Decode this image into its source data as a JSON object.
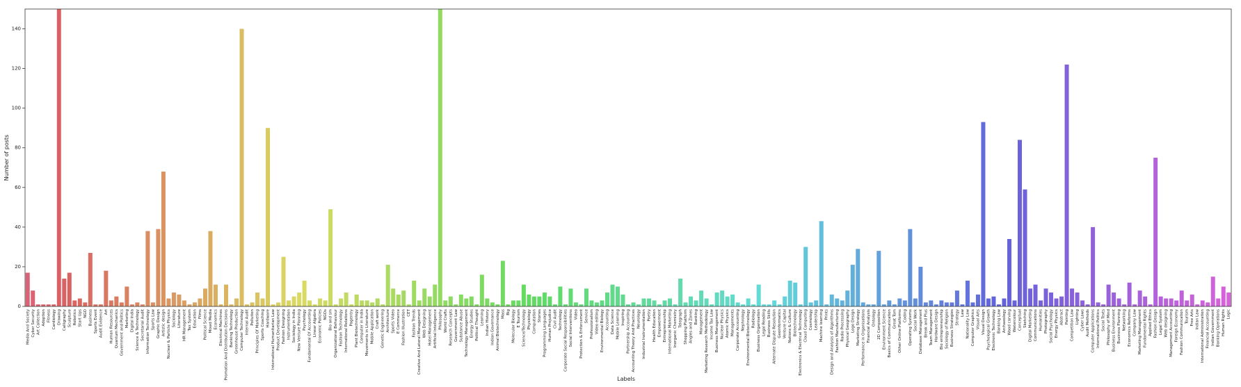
{
  "chart_data": {
    "type": "bar",
    "x_label": "Labels",
    "y_label": "Number of posts",
    "palette": "husl",
    "grid": false,
    "ylim": [
      0,
      150
    ],
    "yticks": [
      0,
      20,
      40,
      60,
      80,
      100,
      120,
      140
    ],
    "categories": [
      "Media And Society",
      "Cyber Security",
      "Art Collection",
      "Adoption",
      "Fitness",
      "Cardiology",
      "Drawing",
      "Calligraphy",
      "Sculpture",
      "Robotics",
      "Start Ups",
      "NGO",
      "Business",
      "Sports Event",
      "Audit Evidence",
      "Art",
      "Human Resources",
      "Quantum Mechanics",
      "Government and Politics",
      "Marketing",
      "Digital India",
      "Science & Technology",
      "Secretarial Audit",
      "Information Technology",
      "Sports Law",
      "Graphic Design",
      "Artistic design",
      "Nuclear & Particle Physics",
      "Sociology",
      "Literature",
      "HR Management",
      "Tax System",
      "Education",
      "Films",
      "Political Science",
      "Mixed Media",
      "Economics",
      "Electrical Machines",
      "Promotion And Distribution Decisions",
      "Banking Technology",
      "Greenhouse Production",
      "Computer Technology",
      "Internal Audit",
      "Pollution",
      "Principles Of Marketing",
      "Sports Coaching",
      "Hardware",
      "International Humanitarian Law",
      "Product Development",
      "Fashion Designing",
      "Instrumentation",
      "Sociology in India",
      "New Venture Planning",
      "Psychology",
      "Fundamental Of Accounting",
      "Linear Algebra",
      "Economic Policies",
      "NGOs",
      "Bio and sm",
      "Organizational Behaviour",
      "Fashion Technology",
      "International Relations",
      "Pagentry",
      "Plant Biotechnology",
      "Computer in India",
      "Movements in Literature",
      "Mobile Application",
      "Craft work",
      "Genetic Engineering",
      "Architecture",
      "Sports Video",
      "E Commerce",
      "Fashion Illustration",
      "CET",
      "Fashion Trends",
      "Creative And Lateral Management",
      "Web Designing",
      "Hotel Management",
      "Artificial Intelligence",
      "Philosophy",
      "World Crafts",
      "Research Concepts",
      "Government Law",
      "Substance Abuse",
      "Technology Management",
      "Energy Studies",
      "Political Thought",
      "Learning",
      "Indian History",
      "Indian Governance",
      "Animal Biotechnology",
      "Mass",
      "Big",
      "Molecular Biology",
      "E Tourism",
      "Science/Technology",
      "Physiology",
      "Computation",
      "Stories",
      "Programming Languages",
      "Human Prejudice",
      "Civil Audit",
      "Technology",
      "Corporate Social Responsibilities",
      "Social Interventions",
      "Video",
      "Protection & Enforcement",
      "Service",
      "Professionalism",
      "Video editing",
      "Environmental Biology",
      "Accounting",
      "Data Science",
      "Mobile Learning",
      "Inspiring",
      "Partnership Accounting",
      "Accounting Theory And Practices",
      "Neurology",
      "Industrial Instrumentation",
      "Poetry",
      "Health Education",
      "Empowerment",
      "Entrepreneurship",
      "International Marketing",
      "Inorganic Chemistry",
      "Telegraph",
      "Shopping Platform",
      "Angles and Zones",
      "Banking",
      "Management",
      "Marketing Research Methodology",
      "Income Tax Law",
      "Business Management",
      "Nuclear Physics",
      "Atomic Physics",
      "Managements",
      "Corporate Accounting",
      "Nephrology",
      "Environmental Biotechnology",
      "Radiology",
      "Business Organisation",
      "Legal Reading",
      "Business Skills",
      "Alternate Dispute Resolution",
      "Geoinformatics",
      "Venture Capital",
      "Nations & Culture",
      "Biotechnology",
      "Electronics & Electrical Technology",
      "Cloud Computing",
      "Cosmology",
      "Leadership",
      "Machine learning",
      "Prints",
      "Design and Analysis of Algorithms",
      "Fashion Manufacturing",
      "Radio Processing",
      "Physical Geography",
      "Logo Design",
      "Marketing Strategy",
      "Performance in Organisations",
      "Financial Analysis",
      "Ontology",
      "2D Composition",
      "Environment Science",
      "Basics of Communication",
      "Great Tom",
      "Other Online Platforms",
      "Coding",
      "Operating Systems",
      "Social Work",
      "Database Management",
      "Break and Plus",
      "Team Management",
      "Hardware Design",
      "Bio entrepreneurship",
      "Sociology of Religion",
      "Business Strategies",
      "Strategy",
      "Law",
      "Nationality Law",
      "Computer Graphics",
      "Visual Arts",
      "Visual Design",
      "Psychological Growth",
      "Electronic Technology",
      "Banking Law",
      "Archaeology",
      "Wood carving",
      "Watercolour",
      "Conceptual",
      "Sketching",
      "Digital Marketing",
      "Communications",
      "Humanities",
      "Photography",
      "Social Psychology",
      "Energy Physics",
      "Abstract",
      "Painting",
      "Competition Law",
      "Lighting",
      "Cyber Laws",
      "Audit Methods",
      "Computer Applications",
      "International Politics",
      "Social Texts",
      "Philosophy of Mind",
      "Business Environment",
      "Business Planning",
      "Networking",
      "Economics Reforms",
      "Company Law",
      "Marketing Management",
      "Fundamental Rights",
      "Applied Ethics",
      "Fashion Design",
      "Legal System",
      "Web designing",
      "Management Accounting",
      "Foreign Economy",
      "Fashion Communication",
      "Tourism",
      "Free Arts",
      "Indian Law",
      "International Administration",
      "Financial Accounting",
      "Indian Government",
      "Banking Operations",
      "Human Rights",
      "Logic"
    ],
    "values": [
      17,
      8,
      1,
      1,
      1,
      1,
      150,
      14,
      17,
      3,
      4,
      2,
      27,
      1,
      1,
      18,
      3,
      5,
      2,
      10,
      1,
      2,
      1,
      38,
      2,
      39,
      68,
      4,
      7,
      6,
      3,
      1,
      2,
      4,
      9,
      38,
      11,
      1,
      11,
      1,
      4,
      140,
      1,
      2,
      7,
      4,
      90,
      1,
      2,
      25,
      3,
      5,
      7,
      13,
      3,
      1,
      4,
      3,
      49,
      1,
      4,
      7,
      1,
      6,
      3,
      3,
      2,
      4,
      1,
      21,
      9,
      6,
      8,
      1,
      13,
      3,
      9,
      5,
      11,
      150,
      3,
      5,
      1,
      6,
      4,
      5,
      1,
      16,
      4,
      2,
      1,
      23,
      1,
      3,
      3,
      11,
      6,
      5,
      5,
      7,
      5,
      1,
      10,
      1,
      9,
      2,
      1,
      9,
      3,
      2,
      3,
      7,
      11,
      10,
      6,
      1,
      2,
      1,
      4,
      4,
      3,
      1,
      3,
      4,
      1,
      14,
      2,
      5,
      3,
      8,
      4,
      1,
      7,
      8,
      5,
      6,
      2,
      1,
      4,
      1,
      11,
      1,
      1,
      3,
      1,
      5,
      13,
      12,
      1,
      30,
      2,
      3,
      43,
      1,
      6,
      4,
      3,
      8,
      21,
      29,
      2,
      1,
      1,
      28,
      1,
      3,
      1,
      4,
      3,
      39,
      4,
      20,
      2,
      3,
      1,
      3,
      2,
      2,
      8,
      1,
      13,
      2,
      6,
      93,
      4,
      5,
      1,
      4,
      34,
      3,
      84,
      59,
      9,
      11,
      3,
      9,
      7,
      4,
      5,
      122,
      9,
      7,
      3,
      1,
      40,
      2,
      1,
      11,
      7,
      4,
      1,
      12,
      1,
      8,
      5,
      1,
      75,
      5,
      4,
      4,
      3,
      8,
      3,
      6,
      1,
      3,
      2,
      15,
      4,
      10,
      7
    ]
  }
}
